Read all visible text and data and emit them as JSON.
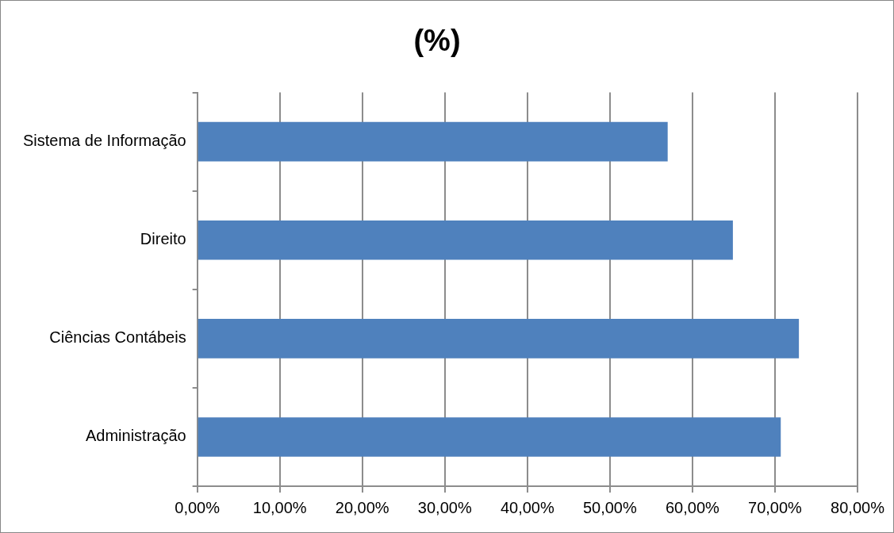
{
  "chart_data": {
    "type": "bar",
    "orientation": "horizontal",
    "title": "(%)",
    "categories": [
      "Sistema de Informação",
      "Direito",
      "Ciências Contábeis",
      "Administração"
    ],
    "values": [
      57.0,
      64.9,
      72.9,
      70.7
    ],
    "color": "#4f81bd",
    "xlim": [
      0,
      80
    ],
    "xticks": [
      {
        "value": 0,
        "label": "0,00%"
      },
      {
        "value": 10,
        "label": "10,00%"
      },
      {
        "value": 20,
        "label": "20,00%"
      },
      {
        "value": 30,
        "label": "30,00%"
      },
      {
        "value": 40,
        "label": "40,00%"
      },
      {
        "value": 50,
        "label": "50,00%"
      },
      {
        "value": 60,
        "label": "60,00%"
      },
      {
        "value": 70,
        "label": "70,00%"
      },
      {
        "value": 80,
        "label": "80,00%"
      }
    ],
    "grid": "x",
    "legend": false
  }
}
